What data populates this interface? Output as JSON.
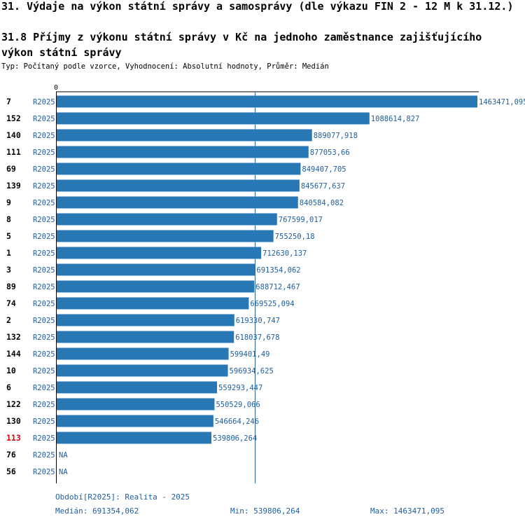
{
  "header": {
    "title": "31. Výdaje na výkon státní správy a samosprávy (dle výkazu FIN 2 - 12 M k 31.12.)",
    "subtitle": "31.8 Příjmy z výkonu státní správy v Kč na jednoho zaměstnance zajišťujícího výkon státní správy",
    "info": "Typ: Počítaný podle vzorce, Vyhodnocení: Absolutní hodnoty, Průměr: Medián"
  },
  "colors": {
    "bar": "#2878b5",
    "label_blue": "#1f5fa0",
    "highlight": "#dd0000",
    "median_line": "#2a6aa0"
  },
  "chart_data": {
    "type": "bar",
    "orientation": "horizontal",
    "axis_zero_label": "0",
    "xlim": [
      0,
      1463471.095
    ],
    "median": 691354.062,
    "highlight_category": "113",
    "categories": [
      "7",
      "152",
      "140",
      "111",
      "69",
      "139",
      "9",
      "8",
      "5",
      "1",
      "3",
      "89",
      "74",
      "2",
      "132",
      "144",
      "10",
      "6",
      "122",
      "130",
      "113",
      "76",
      "56"
    ],
    "period_labels": [
      "R2025",
      "R2025",
      "R2025",
      "R2025",
      "R2025",
      "R2025",
      "R2025",
      "R2025",
      "R2025",
      "R2025",
      "R2025",
      "R2025",
      "R2025",
      "R2025",
      "R2025",
      "R2025",
      "R2025",
      "R2025",
      "R2025",
      "R2025",
      "R2025",
      "R2025",
      "R2025"
    ],
    "values": [
      1463471.095,
      1088614.827,
      889077.918,
      877053.66,
      849407.705,
      845677.637,
      840584.082,
      767599.017,
      755250.18,
      712630.137,
      691354.062,
      688712.467,
      669525.094,
      619330.747,
      618037.678,
      599401.49,
      596934.625,
      559293.447,
      550529.066,
      546664.246,
      539806.264,
      null,
      null
    ],
    "value_labels": [
      "1463471,095",
      "1088614,827",
      "889077,918",
      "877053,66",
      "849407,705",
      "845677,637",
      "840584,082",
      "767599,017",
      "755250,18",
      "712630,137",
      "691354,062",
      "688712,467",
      "669525,094",
      "619330,747",
      "618037,678",
      "599401,49",
      "596934,625",
      "559293,447",
      "550529,066",
      "546664,246",
      "539806,264",
      "NA",
      "NA"
    ]
  },
  "footer": {
    "period": "Období[R2025]: Realita - 2025",
    "median": "Medián: 691354,062",
    "min": "Min: 539806,264",
    "max": "Max: 1463471,095"
  }
}
